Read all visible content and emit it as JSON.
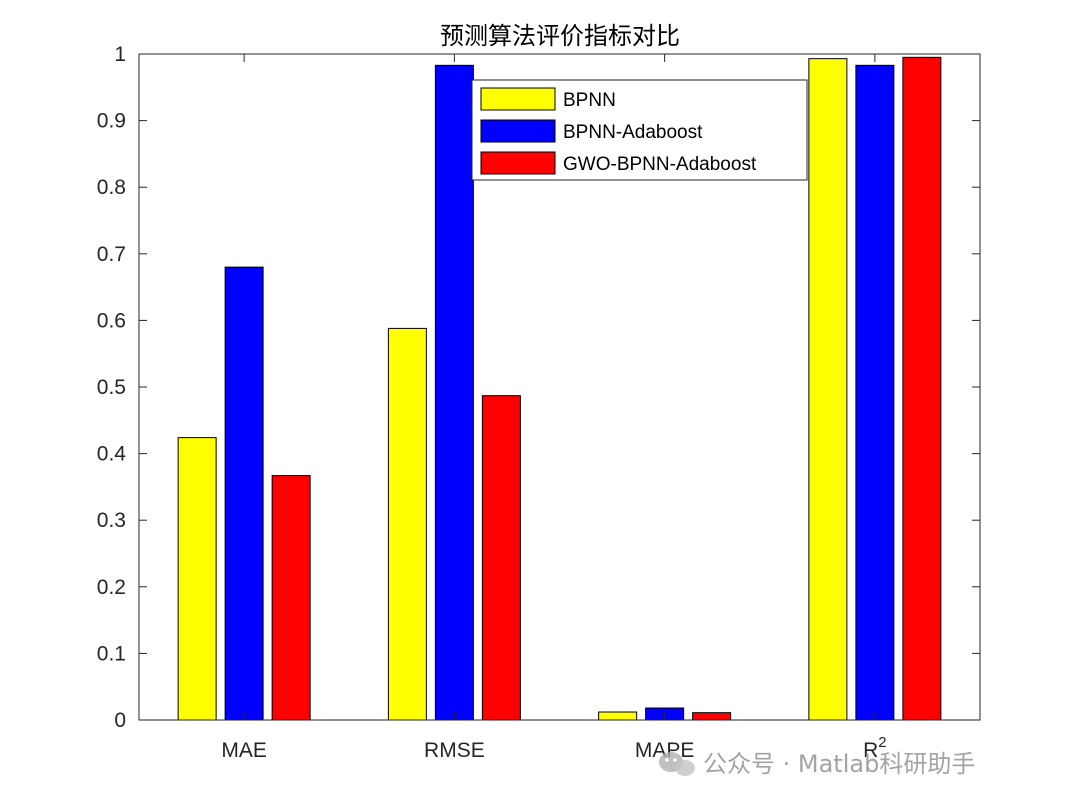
{
  "chart_data": {
    "type": "bar",
    "title": "预测算法评价指标对比",
    "categories": [
      "MAE",
      "RMSE",
      "MAPE",
      "R"
    ],
    "category_superscripts": [
      "",
      "",
      "",
      "2"
    ],
    "series": [
      {
        "name": "BPNN",
        "color": "#ffff00",
        "values": [
          0.424,
          0.588,
          0.012,
          0.993
        ]
      },
      {
        "name": "BPNN-Adaboost",
        "color": "#0000ff",
        "values": [
          0.68,
          0.983,
          0.018,
          0.983
        ]
      },
      {
        "name": "GWO-BPNN-Adaboost",
        "color": "#ff0000",
        "values": [
          0.367,
          0.487,
          0.011,
          0.995
        ]
      }
    ],
    "ylim": [
      0,
      1
    ],
    "yticks": [
      "0",
      "0.1",
      "0.2",
      "0.3",
      "0.4",
      "0.5",
      "0.6",
      "0.7",
      "0.8",
      "0.9",
      "1"
    ],
    "ytick_values": [
      0,
      0.1,
      0.2,
      0.3,
      0.4,
      0.5,
      0.6,
      0.7,
      0.8,
      0.9,
      1
    ],
    "xlabel": "",
    "ylabel": "",
    "grid": false,
    "legend_position": "top-right",
    "axis_color": "#262626",
    "bar_edge_color": "#000000"
  },
  "watermark": {
    "text": "公众号 · Matlab科研助手",
    "icon": "wechat-icon"
  }
}
